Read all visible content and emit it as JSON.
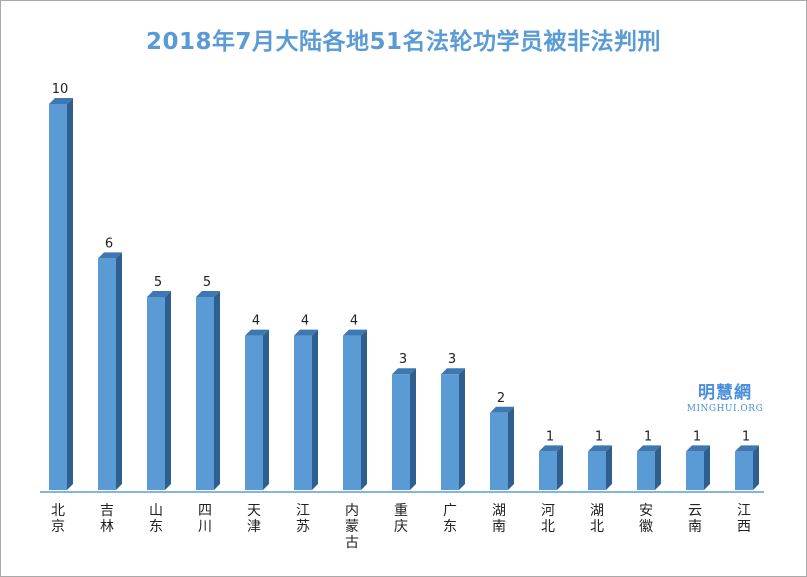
{
  "chart_data": {
    "type": "bar",
    "title": "2018年7月大陆各地51名法轮功学员被非法判刑",
    "categories": [
      "北京",
      "吉林",
      "山东",
      "四川",
      "天津",
      "江苏",
      "内蒙古",
      "重庆",
      "广东",
      "湖南",
      "河北",
      "湖北",
      "安徽",
      "云南",
      "江西"
    ],
    "values": [
      10,
      6,
      5,
      5,
      4,
      4,
      4,
      3,
      3,
      2,
      1,
      1,
      1,
      1,
      1
    ],
    "xlabel": "",
    "ylabel": "",
    "ylim": [
      0,
      10
    ],
    "grid": false,
    "legend": "none",
    "data_labels": true,
    "colors": {
      "bar_front": "#5b9bd5",
      "bar_side": "#2e5f8e",
      "bar_top": "#3f78b0",
      "axis": "#5b9bd5",
      "title": "#5b9bd5",
      "label_text": "#222222"
    }
  },
  "watermark": {
    "chinese": "明慧網",
    "english": "MINGHUI.ORG",
    "color": "#4a90d9"
  }
}
